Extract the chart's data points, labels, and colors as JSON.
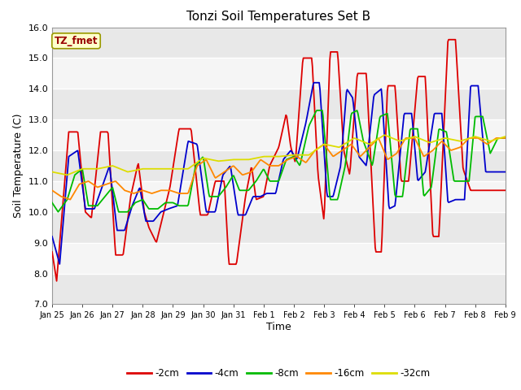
{
  "title": "Tonzi Soil Temperatures Set B",
  "xlabel": "Time",
  "ylabel": "Soil Temperature (C)",
  "ylim": [
    7.0,
    16.0
  ],
  "yticks": [
    7.0,
    8.0,
    9.0,
    10.0,
    11.0,
    12.0,
    13.0,
    14.0,
    15.0,
    16.0
  ],
  "xtick_labels": [
    "Jan 25",
    "Jan 26",
    "Jan 27",
    "Jan 28",
    "Jan 29",
    "Jan 30",
    "Jan 31",
    "Feb 1",
    "Feb 2",
    "Feb 3",
    "Feb 4",
    "Feb 5",
    "Feb 6",
    "Feb 7",
    "Feb 8",
    "Feb 9"
  ],
  "colors": {
    "-2cm": "#dd0000",
    "-4cm": "#0000cc",
    "-8cm": "#00bb00",
    "-16cm": "#ff8800",
    "-32cm": "#dddd00"
  },
  "fig_bg": "#ffffff",
  "plot_bg_light": "#f0f0f0",
  "plot_bg_dark": "#e0e0e0",
  "grid_color": "#ffffff",
  "tz_box_face": "#ffffcc",
  "tz_box_edge": "#999900",
  "tz_text_color": "#990000",
  "waypoints_2cm": [
    [
      0.0,
      8.7
    ],
    [
      0.15,
      7.75
    ],
    [
      0.55,
      12.6
    ],
    [
      0.85,
      12.6
    ],
    [
      1.1,
      10.0
    ],
    [
      1.3,
      9.8
    ],
    [
      1.6,
      12.6
    ],
    [
      1.85,
      12.6
    ],
    [
      2.1,
      8.6
    ],
    [
      2.35,
      8.6
    ],
    [
      2.6,
      10.5
    ],
    [
      2.85,
      11.6
    ],
    [
      3.05,
      10.0
    ],
    [
      3.2,
      9.5
    ],
    [
      3.45,
      9.0
    ],
    [
      3.65,
      9.8
    ],
    [
      3.9,
      10.8
    ],
    [
      4.2,
      12.7
    ],
    [
      4.6,
      12.7
    ],
    [
      4.9,
      9.9
    ],
    [
      5.15,
      9.9
    ],
    [
      5.4,
      11.0
    ],
    [
      5.7,
      11.0
    ],
    [
      5.85,
      8.3
    ],
    [
      6.1,
      8.3
    ],
    [
      6.4,
      10.5
    ],
    [
      6.6,
      11.5
    ],
    [
      6.75,
      10.4
    ],
    [
      7.0,
      10.5
    ],
    [
      7.2,
      11.5
    ],
    [
      7.5,
      12.1
    ],
    [
      7.75,
      13.2
    ],
    [
      7.9,
      12.1
    ],
    [
      8.05,
      11.6
    ],
    [
      8.3,
      15.0
    ],
    [
      8.6,
      15.0
    ],
    [
      8.8,
      11.2
    ],
    [
      9.0,
      9.7
    ],
    [
      9.2,
      15.2
    ],
    [
      9.45,
      15.2
    ],
    [
      9.65,
      12.0
    ],
    [
      9.85,
      11.2
    ],
    [
      10.1,
      14.5
    ],
    [
      10.4,
      14.5
    ],
    [
      10.7,
      8.7
    ],
    [
      10.9,
      8.7
    ],
    [
      11.1,
      14.1
    ],
    [
      11.35,
      14.1
    ],
    [
      11.55,
      11.0
    ],
    [
      11.8,
      11.0
    ],
    [
      12.1,
      14.4
    ],
    [
      12.35,
      14.4
    ],
    [
      12.6,
      9.2
    ],
    [
      12.8,
      9.2
    ],
    [
      13.1,
      15.6
    ],
    [
      13.35,
      15.6
    ],
    [
      13.6,
      11.4
    ],
    [
      13.85,
      10.7
    ],
    [
      14.1,
      10.7
    ],
    [
      15.0,
      10.7
    ]
  ],
  "waypoints_4cm": [
    [
      0.0,
      9.2
    ],
    [
      0.25,
      8.3
    ],
    [
      0.55,
      11.8
    ],
    [
      0.85,
      12.0
    ],
    [
      1.1,
      10.1
    ],
    [
      1.4,
      10.1
    ],
    [
      1.65,
      10.8
    ],
    [
      1.9,
      11.5
    ],
    [
      2.15,
      9.4
    ],
    [
      2.4,
      9.4
    ],
    [
      2.65,
      10.2
    ],
    [
      2.9,
      10.8
    ],
    [
      3.1,
      9.7
    ],
    [
      3.35,
      9.7
    ],
    [
      3.6,
      10.0
    ],
    [
      3.85,
      10.1
    ],
    [
      4.15,
      10.2
    ],
    [
      4.5,
      12.3
    ],
    [
      4.8,
      12.2
    ],
    [
      5.1,
      10.0
    ],
    [
      5.4,
      10.0
    ],
    [
      5.65,
      11.2
    ],
    [
      5.9,
      11.5
    ],
    [
      6.15,
      9.9
    ],
    [
      6.4,
      9.9
    ],
    [
      6.65,
      10.5
    ],
    [
      6.9,
      10.5
    ],
    [
      7.1,
      10.6
    ],
    [
      7.4,
      10.6
    ],
    [
      7.65,
      11.7
    ],
    [
      7.9,
      12.0
    ],
    [
      8.1,
      11.7
    ],
    [
      8.4,
      12.9
    ],
    [
      8.65,
      14.2
    ],
    [
      8.85,
      14.2
    ],
    [
      9.1,
      10.5
    ],
    [
      9.3,
      10.5
    ],
    [
      9.55,
      11.5
    ],
    [
      9.75,
      14.0
    ],
    [
      9.95,
      13.7
    ],
    [
      10.15,
      11.8
    ],
    [
      10.4,
      11.5
    ],
    [
      10.65,
      13.8
    ],
    [
      10.9,
      14.0
    ],
    [
      11.15,
      10.1
    ],
    [
      11.35,
      10.2
    ],
    [
      11.65,
      13.2
    ],
    [
      11.9,
      13.2
    ],
    [
      12.1,
      11.0
    ],
    [
      12.35,
      11.3
    ],
    [
      12.65,
      13.2
    ],
    [
      12.9,
      13.2
    ],
    [
      13.1,
      10.3
    ],
    [
      13.35,
      10.4
    ],
    [
      13.65,
      10.4
    ],
    [
      13.85,
      14.1
    ],
    [
      14.1,
      14.1
    ],
    [
      14.35,
      11.3
    ],
    [
      14.6,
      11.3
    ],
    [
      15.0,
      11.3
    ]
  ],
  "waypoints_8cm": [
    [
      0.0,
      10.3
    ],
    [
      0.2,
      10.0
    ],
    [
      0.5,
      10.4
    ],
    [
      0.75,
      11.2
    ],
    [
      1.0,
      11.4
    ],
    [
      1.2,
      10.2
    ],
    [
      1.5,
      10.2
    ],
    [
      1.75,
      10.5
    ],
    [
      2.0,
      10.8
    ],
    [
      2.2,
      10.0
    ],
    [
      2.5,
      10.0
    ],
    [
      2.75,
      10.3
    ],
    [
      3.0,
      10.4
    ],
    [
      3.2,
      10.1
    ],
    [
      3.5,
      10.1
    ],
    [
      3.75,
      10.3
    ],
    [
      4.0,
      10.3
    ],
    [
      4.2,
      10.2
    ],
    [
      4.5,
      10.2
    ],
    [
      4.75,
      11.5
    ],
    [
      5.0,
      11.8
    ],
    [
      5.2,
      10.5
    ],
    [
      5.5,
      10.5
    ],
    [
      5.75,
      10.8
    ],
    [
      6.0,
      11.2
    ],
    [
      6.2,
      10.7
    ],
    [
      6.5,
      10.7
    ],
    [
      6.75,
      11.0
    ],
    [
      7.0,
      11.4
    ],
    [
      7.2,
      11.0
    ],
    [
      7.5,
      11.0
    ],
    [
      7.75,
      11.7
    ],
    [
      8.0,
      11.8
    ],
    [
      8.2,
      11.5
    ],
    [
      8.5,
      12.8
    ],
    [
      8.75,
      13.3
    ],
    [
      8.95,
      13.3
    ],
    [
      9.2,
      10.4
    ],
    [
      9.45,
      10.4
    ],
    [
      9.7,
      11.5
    ],
    [
      9.9,
      13.2
    ],
    [
      10.1,
      13.3
    ],
    [
      10.3,
      12.3
    ],
    [
      10.6,
      11.5
    ],
    [
      10.85,
      13.1
    ],
    [
      11.1,
      13.2
    ],
    [
      11.35,
      10.5
    ],
    [
      11.6,
      10.5
    ],
    [
      11.85,
      12.7
    ],
    [
      12.1,
      12.7
    ],
    [
      12.3,
      10.5
    ],
    [
      12.55,
      10.8
    ],
    [
      12.8,
      12.7
    ],
    [
      13.05,
      12.6
    ],
    [
      13.3,
      11.0
    ],
    [
      13.55,
      11.0
    ],
    [
      13.8,
      11.0
    ],
    [
      14.0,
      13.1
    ],
    [
      14.25,
      13.1
    ],
    [
      14.5,
      11.9
    ],
    [
      14.75,
      12.4
    ],
    [
      15.0,
      12.4
    ]
  ],
  "waypoints_16cm": [
    [
      0.0,
      10.7
    ],
    [
      0.3,
      10.5
    ],
    [
      0.6,
      10.4
    ],
    [
      0.9,
      10.9
    ],
    [
      1.2,
      11.0
    ],
    [
      1.5,
      10.8
    ],
    [
      1.8,
      10.9
    ],
    [
      2.1,
      11.0
    ],
    [
      2.4,
      10.7
    ],
    [
      2.7,
      10.6
    ],
    [
      3.0,
      10.7
    ],
    [
      3.3,
      10.6
    ],
    [
      3.6,
      10.7
    ],
    [
      3.9,
      10.7
    ],
    [
      4.2,
      10.6
    ],
    [
      4.5,
      10.6
    ],
    [
      4.8,
      11.5
    ],
    [
      5.1,
      11.7
    ],
    [
      5.4,
      11.1
    ],
    [
      5.7,
      11.3
    ],
    [
      6.0,
      11.5
    ],
    [
      6.3,
      11.2
    ],
    [
      6.6,
      11.3
    ],
    [
      6.9,
      11.7
    ],
    [
      7.2,
      11.5
    ],
    [
      7.5,
      11.5
    ],
    [
      7.8,
      11.7
    ],
    [
      8.1,
      11.8
    ],
    [
      8.4,
      11.6
    ],
    [
      8.7,
      12.0
    ],
    [
      9.0,
      12.2
    ],
    [
      9.3,
      11.8
    ],
    [
      9.6,
      12.0
    ],
    [
      9.9,
      12.2
    ],
    [
      10.2,
      11.8
    ],
    [
      10.5,
      12.1
    ],
    [
      10.8,
      12.4
    ],
    [
      11.1,
      11.7
    ],
    [
      11.4,
      11.9
    ],
    [
      11.7,
      12.4
    ],
    [
      12.0,
      12.4
    ],
    [
      12.3,
      11.8
    ],
    [
      12.6,
      12.0
    ],
    [
      12.9,
      12.3
    ],
    [
      13.2,
      12.0
    ],
    [
      13.5,
      12.1
    ],
    [
      13.8,
      12.4
    ],
    [
      14.1,
      12.4
    ],
    [
      14.4,
      12.2
    ],
    [
      14.7,
      12.4
    ],
    [
      15.0,
      12.4
    ]
  ],
  "waypoints_32cm": [
    [
      0.0,
      11.3
    ],
    [
      0.5,
      11.2
    ],
    [
      1.0,
      11.4
    ],
    [
      1.5,
      11.4
    ],
    [
      2.0,
      11.5
    ],
    [
      2.5,
      11.3
    ],
    [
      3.0,
      11.4
    ],
    [
      3.5,
      11.4
    ],
    [
      4.0,
      11.4
    ],
    [
      4.5,
      11.4
    ],
    [
      5.0,
      11.75
    ],
    [
      5.5,
      11.65
    ],
    [
      6.0,
      11.7
    ],
    [
      6.5,
      11.7
    ],
    [
      7.0,
      11.8
    ],
    [
      7.5,
      11.8
    ],
    [
      8.0,
      11.85
    ],
    [
      8.5,
      11.85
    ],
    [
      9.0,
      12.2
    ],
    [
      9.5,
      12.1
    ],
    [
      10.0,
      12.4
    ],
    [
      10.5,
      12.2
    ],
    [
      11.0,
      12.5
    ],
    [
      11.5,
      12.3
    ],
    [
      12.0,
      12.45
    ],
    [
      12.5,
      12.25
    ],
    [
      13.0,
      12.4
    ],
    [
      13.5,
      12.3
    ],
    [
      14.0,
      12.45
    ],
    [
      14.5,
      12.3
    ],
    [
      15.0,
      12.45
    ]
  ]
}
